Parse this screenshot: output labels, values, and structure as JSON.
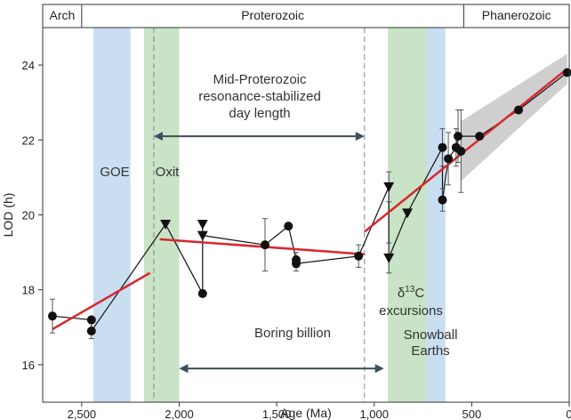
{
  "chart_data": {
    "type": "scatter",
    "title": "",
    "xlabel": "Age (Ma)",
    "ylabel": "LOD (h)",
    "xlim": [
      2700,
      0
    ],
    "ylim": [
      15,
      25
    ],
    "x_ticks": [
      2500,
      2000,
      1500,
      1000,
      500,
      0
    ],
    "x_tick_labels": [
      "2,500",
      "2,000",
      "1,500",
      "1,000",
      "500",
      "0"
    ],
    "y_ticks": [
      16,
      18,
      20,
      22,
      24
    ],
    "y_tick_labels": [
      "16",
      "18",
      "20",
      "22",
      "24"
    ],
    "grid": false,
    "eras": [
      {
        "label": "Arch",
        "from": 2700,
        "to": 2500
      },
      {
        "label": "Proterozoic",
        "from": 2500,
        "to": 541
      },
      {
        "label": "Phanerozoic",
        "from": 541,
        "to": 0
      }
    ],
    "bands": [
      {
        "label": "GOE",
        "from": 2440,
        "to": 2250,
        "color": "#c9def1"
      },
      {
        "label": "Oxit",
        "from": 2180,
        "to": 2000,
        "color": "#c8e3c6"
      },
      {
        "label": "δ13C excursions",
        "from": 930,
        "to": 730,
        "color": "#c8e3c6"
      },
      {
        "label": "Snowball Earths",
        "from": 730,
        "to": 635,
        "color": "#c9def1"
      }
    ],
    "vlines": [
      2130,
      1050
    ],
    "annotations": {
      "goe": "GOE",
      "oxit": "Oxit",
      "mid_line1": "Mid-Proterozoic",
      "mid_line2": "resonance-stabilized",
      "mid_line3": "day length",
      "delta_prefix": "δ",
      "delta_sup": "13",
      "delta_suffix": "C",
      "excursions": "excursions",
      "snowball1": "Snowball",
      "snowball2": "Earths",
      "boring": "Boring billion"
    },
    "arrows": [
      {
        "name": "mid-proterozoic-arrow",
        "from": 2130,
        "to": 1050,
        "y": 22.1
      },
      {
        "name": "boring-billion-arrow",
        "from": 2000,
        "to": 950,
        "y": 15.9
      }
    ],
    "circles": [
      {
        "x": 2650,
        "y": 17.3,
        "err": 0.45
      },
      {
        "x": 2450,
        "y": 17.2,
        "err": 0
      },
      {
        "x": 2450,
        "y": 16.9,
        "err": 0.2
      },
      {
        "x": 1880,
        "y": 17.9,
        "err": 0
      },
      {
        "x": 1560,
        "y": 19.2,
        "err": 0.7
      },
      {
        "x": 1440,
        "y": 19.7,
        "err": 0
      },
      {
        "x": 1400,
        "y": 18.8,
        "err": 0.2
      },
      {
        "x": 1400,
        "y": 18.7,
        "err": 0.2
      },
      {
        "x": 1080,
        "y": 18.9,
        "err": 0.3
      },
      {
        "x": 650,
        "y": 21.8,
        "err": 0.5
      },
      {
        "x": 620,
        "y": 21.5,
        "err": 0.7
      },
      {
        "x": 650,
        "y": 20.4,
        "err": 0.3
      },
      {
        "x": 580,
        "y": 21.8,
        "err": 0.5
      },
      {
        "x": 570,
        "y": 22.1,
        "err": 0.7
      },
      {
        "x": 555,
        "y": 21.7,
        "err": 1.1
      },
      {
        "x": 460,
        "y": 22.1,
        "err": 0
      },
      {
        "x": 260,
        "y": 22.8,
        "err": 0
      },
      {
        "x": 10,
        "y": 23.8,
        "err": 0
      }
    ],
    "triangles": [
      {
        "x": 2070,
        "y": 19.75
      },
      {
        "x": 1880,
        "y": 19.75
      },
      {
        "x": 1880,
        "y": 19.45
      },
      {
        "x": 925,
        "y": 20.75,
        "err": 0.4
      },
      {
        "x": 925,
        "y": 18.85,
        "err": 0.4
      },
      {
        "x": 830,
        "y": 20.05,
        "err": 0
      }
    ],
    "connecting_line": [
      [
        2650,
        17.3
      ],
      [
        2450,
        17.2
      ],
      [
        2450,
        16.9
      ],
      [
        2070,
        19.75
      ],
      [
        1880,
        17.9
      ],
      [
        1880,
        19.75
      ],
      [
        1880,
        19.45
      ],
      [
        1560,
        19.2
      ],
      [
        1440,
        19.7
      ],
      [
        1400,
        18.8
      ],
      [
        1400,
        18.7
      ],
      [
        1080,
        18.9
      ],
      [
        925,
        20.75
      ],
      [
        925,
        18.85
      ],
      [
        830,
        20.05
      ],
      [
        650,
        21.8
      ],
      [
        650,
        20.4
      ],
      [
        620,
        21.5
      ],
      [
        580,
        21.8
      ],
      [
        570,
        22.1
      ],
      [
        460,
        22.1
      ],
      [
        260,
        22.8
      ],
      [
        10,
        23.8
      ]
    ],
    "series": [
      {
        "color": "#d9272e",
        "segments": [
          {
            "x": [
              2650,
              2150
            ],
            "y": [
              16.95,
              18.45
            ]
          },
          {
            "x": [
              2100,
              1050
            ],
            "y": [
              19.35,
              18.95
            ]
          },
          {
            "x": [
              1050,
              10
            ],
            "y": [
              19.55,
              23.9
            ]
          }
        ]
      }
    ],
    "confidence_band": {
      "x": [
        555,
        10
      ],
      "y_low": [
        20.9,
        23.5
      ],
      "y_high": [
        22.5,
        24.3
      ]
    }
  }
}
